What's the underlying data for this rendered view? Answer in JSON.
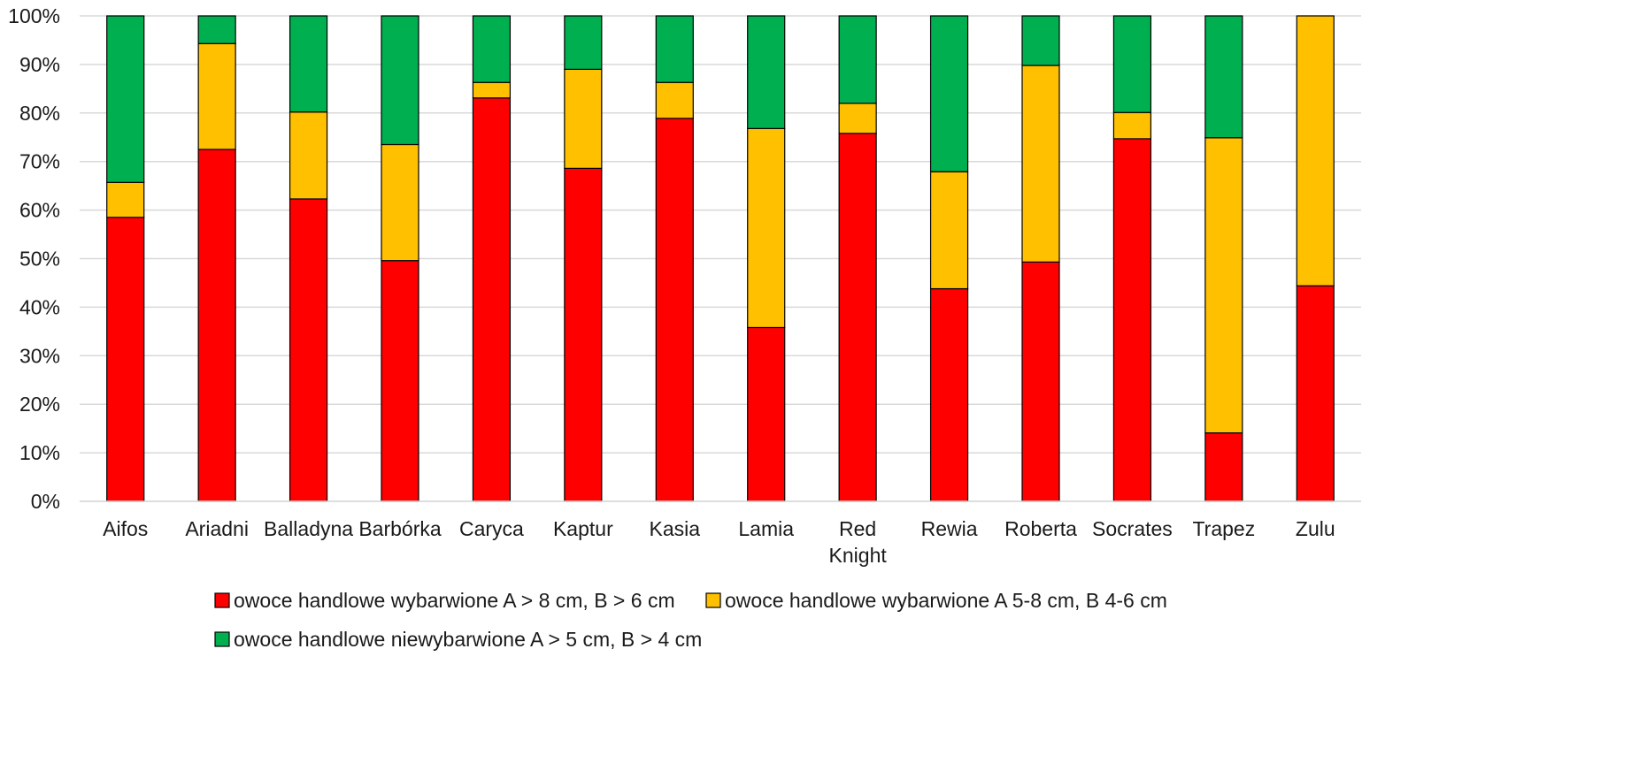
{
  "chart_data": {
    "type": "bar",
    "stacked": true,
    "percent": true,
    "title": "",
    "xlabel": "",
    "ylabel": "",
    "ylim": [
      0,
      100
    ],
    "y_ticks": [
      0,
      10,
      20,
      30,
      40,
      50,
      60,
      70,
      80,
      90,
      100
    ],
    "y_tick_labels": [
      "0%",
      "10%",
      "20%",
      "30%",
      "40%",
      "50%",
      "60%",
      "70%",
      "80%",
      "90%",
      "100%"
    ],
    "grid": true,
    "legend_position": "bottom",
    "categories": [
      "Aifos",
      "Ariadni",
      "Balladyna",
      "Barbórka",
      "Caryca",
      "Kaptur",
      "Kasia",
      "Lamia",
      "Red Knight",
      "Rewia",
      "Roberta",
      "Socrates",
      "Trapez",
      "Zulu"
    ],
    "series": [
      {
        "name": "owoce handlowe wybarwione  A > 8 cm, B > 6 cm",
        "color": "#ff0000",
        "values": [
          58.5,
          72.5,
          62.3,
          49.6,
          83.1,
          68.6,
          78.9,
          35.8,
          75.8,
          43.8,
          49.3,
          74.7,
          14.1,
          44.4
        ]
      },
      {
        "name": "owoce handlowe wybarwione  A 5-8 cm, B 4-6 cm",
        "color": "#ffc000",
        "values": [
          7.2,
          21.8,
          17.9,
          23.9,
          3.2,
          20.4,
          7.4,
          41.0,
          6.2,
          24.1,
          40.5,
          5.4,
          60.8,
          55.6
        ]
      },
      {
        "name": "owoce handlowe niewybarwione  A > 5 cm, B > 4 cm",
        "color": "#00b050",
        "values": [
          34.3,
          5.7,
          19.8,
          26.5,
          13.7,
          11.0,
          13.7,
          23.2,
          18.0,
          32.1,
          10.2,
          19.9,
          25.1,
          0.0
        ]
      }
    ]
  }
}
